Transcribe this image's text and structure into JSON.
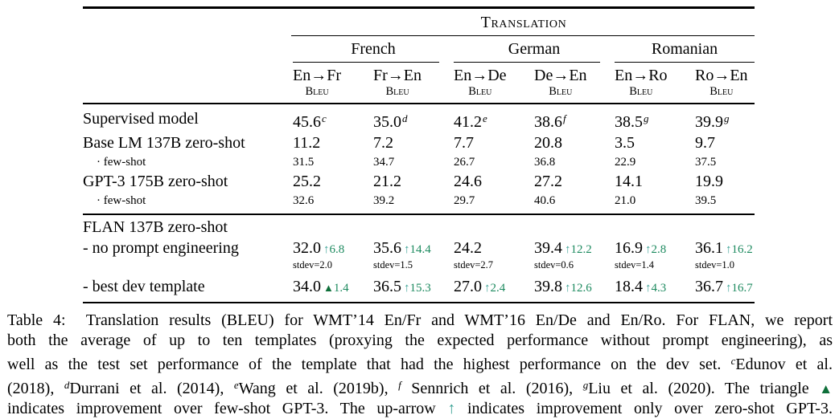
{
  "colors": {
    "improvement_arrow": "#3aa295",
    "improvement_delta": "#1d8a5f",
    "improvement_triangle": "#0e6f39",
    "text": "#000000",
    "background": "#ffffff"
  },
  "head": {
    "title": "Translation",
    "g1": "French",
    "g2": "German",
    "g3": "Romanian",
    "c1": "En→Fr",
    "c2": "Fr→En",
    "c3": "En→De",
    "c4": "De→En",
    "c5": "En→Ro",
    "c6": "Ro→En",
    "metric": "Bleu"
  },
  "rows": {
    "supervised": {
      "label": "Supervised model",
      "v": [
        "45.6",
        "35.0",
        "41.2",
        "38.6",
        "38.5",
        "39.9"
      ],
      "sup": [
        "c",
        "d",
        "e",
        "f",
        "g",
        "g"
      ]
    },
    "base_zero": {
      "label": "Base LM 137B zero-shot",
      "v": [
        "11.2",
        "7.2",
        "7.7",
        "20.8",
        "3.5",
        "9.7"
      ]
    },
    "base_few": {
      "label": "· few-shot",
      "v": [
        "31.5",
        "34.7",
        "26.7",
        "36.8",
        "22.9",
        "37.5"
      ]
    },
    "gpt3_zero": {
      "label": "GPT-3 175B zero-shot",
      "v": [
        "25.2",
        "21.2",
        "24.6",
        "27.2",
        "14.1",
        "19.9"
      ]
    },
    "gpt3_few": {
      "label": "· few-shot",
      "v": [
        "32.6",
        "39.2",
        "29.7",
        "40.6",
        "21.0",
        "39.5"
      ]
    },
    "flan_header": {
      "label": "FLAN 137B zero-shot"
    },
    "flan_avg": {
      "label": "- no prompt engineering",
      "v": [
        "32.0",
        "35.6",
        "24.2",
        "39.4",
        "16.9",
        "36.1"
      ],
      "sym": [
        "↑",
        "↑",
        "",
        "↑",
        "↑",
        "↑"
      ],
      "delta": [
        "6.8",
        "14.4",
        "",
        "12.2",
        "2.8",
        "16.2"
      ],
      "stdev": [
        "stdev=2.0",
        "stdev=1.5",
        "stdev=2.7",
        "stdev=0.6",
        "stdev=1.4",
        "stdev=1.0"
      ]
    },
    "flan_best": {
      "label": "- best dev template",
      "v": [
        "34.0",
        "36.5",
        "27.0",
        "39.8",
        "18.4",
        "36.7"
      ],
      "sym": [
        "▲",
        "↑",
        "↑",
        "↑",
        "↑",
        "↑"
      ],
      "delta": [
        "1.4",
        "15.3",
        "2.4",
        "12.6",
        "4.3",
        "16.7"
      ]
    }
  },
  "caption": {
    "l1": "Table 4:  Translation results (BLEU) for WMT’14 En/Fr and WMT’16 En/De and En/Ro. For FLAN, we report",
    "l2": "both the average of up to ten templates (proxying the expected performance without prompt engineering), as",
    "l3a": "well as the test set performance of the template that had the highest performance on the dev set. ",
    "l3sup": "c",
    "l3b": "Edunov et al.",
    "l4a": "(2018), ",
    "l4sup1": "d",
    "l4b": "Durrani et al. (2014), ",
    "l4sup2": "e",
    "l4c": "Wang et al. (2019b), ",
    "l4sup3": "f",
    "l4d": " Sennrich et al. (2016), ",
    "l4sup4": "g",
    "l4e": "Liu et al. (2020). The triangle ",
    "l4tri": "▲",
    "l5a": "indicates improvement over few-shot GPT-3. The up-arrow ",
    "l5arrow": "↑",
    "l5b": " indicates improvement only over zero-shot GPT-3."
  }
}
